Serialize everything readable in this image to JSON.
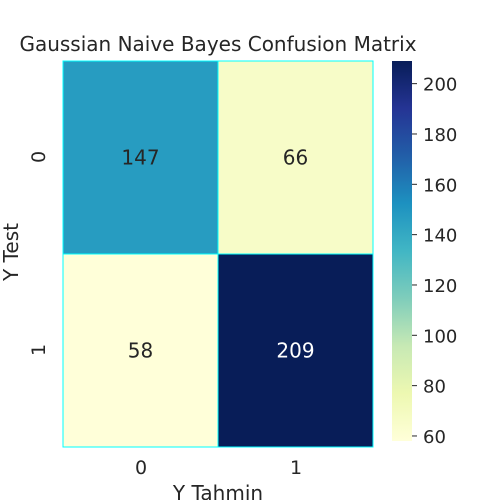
{
  "chart_data": {
    "type": "heatmap",
    "title": "Gaussian Naive Bayes Confusion Matrix",
    "xlabel": "Y Tahmin",
    "ylabel": "Y Test",
    "x_categories": [
      "0",
      "1"
    ],
    "y_categories": [
      "0",
      "1"
    ],
    "values": [
      [
        147,
        66
      ],
      [
        58,
        209
      ]
    ],
    "colormap": "YlGnBu",
    "cell_border_color": "#00ffff",
    "colorbar": {
      "range": [
        58,
        209
      ],
      "ticks": [
        "60",
        "80",
        "100",
        "120",
        "140",
        "160",
        "180",
        "200"
      ]
    }
  }
}
